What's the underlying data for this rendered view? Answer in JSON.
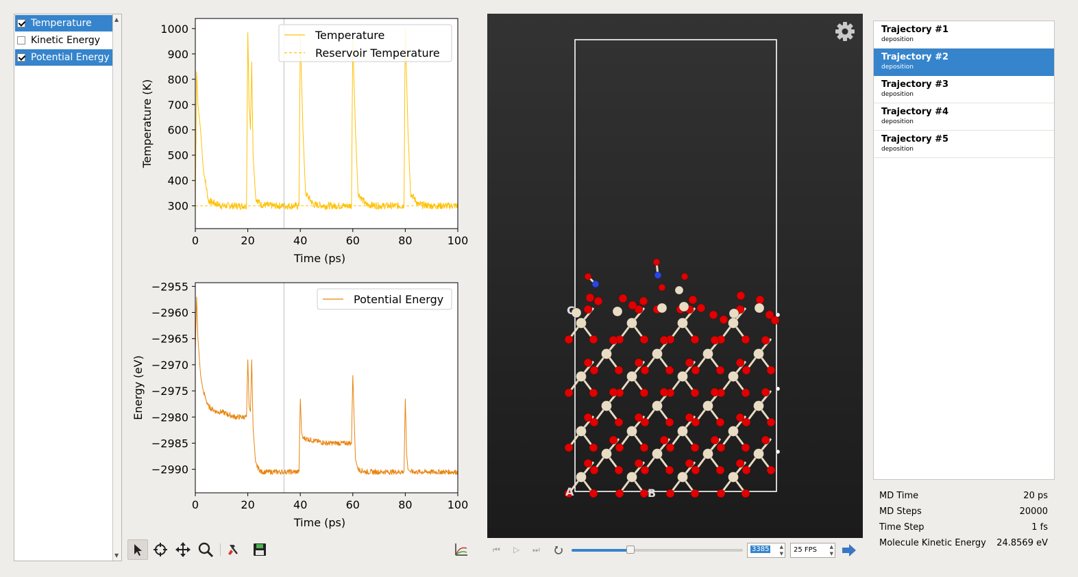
{
  "series_list": {
    "items": [
      {
        "label": "Temperature",
        "checked": true,
        "selected": true
      },
      {
        "label": "Kinetic Energy",
        "checked": false,
        "selected": false
      },
      {
        "label": "Potential Energy",
        "checked": true,
        "selected": true
      }
    ]
  },
  "chart_data": [
    {
      "type": "line",
      "xlabel": "Time (ps)",
      "ylabel": "Temperature (K)",
      "xlim": [
        0,
        100
      ],
      "ylim": [
        210,
        1040
      ],
      "xticks": [
        "0",
        "20",
        "40",
        "60",
        "80",
        "100"
      ],
      "yticks": [
        "300",
        "400",
        "500",
        "600",
        "700",
        "800",
        "900",
        "1000"
      ],
      "legend_position": "top-right",
      "cursor_x": 33.8,
      "series": [
        {
          "name": "Temperature",
          "color": "#ffc107",
          "style": "solid",
          "x": [
            0,
            0.5,
            1,
            2,
            3,
            5,
            10,
            15,
            19.5,
            20,
            20.5,
            21,
            21.5,
            22,
            23,
            25,
            30,
            35,
            39.5,
            40,
            41,
            42,
            45,
            50,
            55,
            59.5,
            60,
            61,
            62,
            65,
            70,
            75,
            79.5,
            80,
            81,
            82,
            85,
            90,
            95,
            100
          ],
          "y": [
            300,
            830,
            700,
            600,
            450,
            320,
            300,
            300,
            300,
            985,
            700,
            600,
            870,
            500,
            330,
            305,
            300,
            300,
            300,
            975,
            600,
            350,
            305,
            300,
            300,
            300,
            960,
            600,
            350,
            305,
            300,
            300,
            300,
            1000,
            600,
            350,
            305,
            300,
            300,
            300
          ]
        },
        {
          "name": "Reservoir Temperature",
          "color": "#ffc107",
          "style": "dashed",
          "x": [
            0,
            100
          ],
          "y": [
            300,
            300
          ]
        }
      ]
    },
    {
      "type": "line",
      "xlabel": "Time (ps)",
      "ylabel": "Energy (eV)",
      "xlim": [
        0,
        100
      ],
      "ylim": [
        -2994.5,
        -2954.3
      ],
      "xticks": [
        "0",
        "20",
        "40",
        "60",
        "80",
        "100"
      ],
      "yticks": [
        "−2955",
        "−2960",
        "−2965",
        "−2970",
        "−2975",
        "−2980",
        "−2985",
        "−2990"
      ],
      "ytick_values": [
        -2955,
        -2960,
        -2965,
        -2970,
        -2975,
        -2980,
        -2985,
        -2990
      ],
      "legend_position": "top-right",
      "cursor_x": 33.8,
      "series": [
        {
          "name": "Potential Energy",
          "color": "#e8830c",
          "style": "solid",
          "x": [
            0,
            0.5,
            1,
            2,
            3,
            5,
            8,
            10,
            15,
            19.5,
            20,
            20.5,
            21,
            21.5,
            22,
            23,
            25,
            30,
            35,
            39.5,
            40,
            40.5,
            41,
            45,
            50,
            55,
            59.5,
            60,
            60.5,
            61,
            62,
            65,
            70,
            75,
            79.5,
            80,
            80.5,
            81,
            82,
            85,
            90,
            95,
            100
          ],
          "y": [
            -2967,
            -2957,
            -2965,
            -2972,
            -2975,
            -2978,
            -2979,
            -2979,
            -2980,
            -2980,
            -2969,
            -2978,
            -2979,
            -2969,
            -2982,
            -2989,
            -2990.5,
            -2990.5,
            -2990.5,
            -2990.5,
            -2976.5,
            -2983,
            -2984,
            -2984.5,
            -2985,
            -2985,
            -2985,
            -2972,
            -2980,
            -2988,
            -2990,
            -2990.5,
            -2990.5,
            -2990.5,
            -2990.5,
            -2976.5,
            -2987,
            -2990,
            -2990.5,
            -2990.5,
            -2990.5,
            -2990.5,
            -2990.5
          ]
        }
      ]
    }
  ],
  "toolbar": {
    "tools": [
      {
        "name": "select-tool-icon",
        "active": true
      },
      {
        "name": "crosshair-tool-icon",
        "active": false
      },
      {
        "name": "pan-tool-icon",
        "active": false
      },
      {
        "name": "zoom-tool-icon",
        "active": false
      },
      {
        "name": "clear-tool-icon",
        "active": false
      },
      {
        "name": "save-icon",
        "active": false
      }
    ],
    "chart_options_icon": "axes-chart-icon"
  },
  "viewer": {
    "axis_labels": [
      "A",
      "B",
      "C"
    ],
    "settings_icon": "gear-icon",
    "colors": {
      "background_top": "#333333",
      "background_bottom": "#1b1b1b",
      "oxygen": "#e00000",
      "nitrogen": "#2846e6",
      "silicon": "#e9dcc4",
      "hydrogen": "#ffffff",
      "cell": "#ffffff"
    }
  },
  "playback": {
    "icons": [
      "skip-back-icon",
      "play-icon",
      "skip-forward-icon",
      "loop-icon"
    ],
    "frame": "3385",
    "position_fraction": 0.342,
    "fps": "25 FPS",
    "export_icon": "arrow-right-icon"
  },
  "trajectories": {
    "items": [
      {
        "title": "Trajectory #1",
        "subtitle": "deposition",
        "selected": false
      },
      {
        "title": "Trajectory #2",
        "subtitle": "deposition",
        "selected": true
      },
      {
        "title": "Trajectory #3",
        "subtitle": "deposition",
        "selected": false
      },
      {
        "title": "Trajectory #4",
        "subtitle": "deposition",
        "selected": false
      },
      {
        "title": "Trajectory #5",
        "subtitle": "deposition",
        "selected": false
      }
    ]
  },
  "info": {
    "rows": [
      {
        "label": "MD Time",
        "value": "20 ps"
      },
      {
        "label": "MD Steps",
        "value": "20000"
      },
      {
        "label": "Time Step",
        "value": "1 fs"
      },
      {
        "label": "Molecule Kinetic Energy",
        "value": "24.8569 eV"
      }
    ]
  }
}
